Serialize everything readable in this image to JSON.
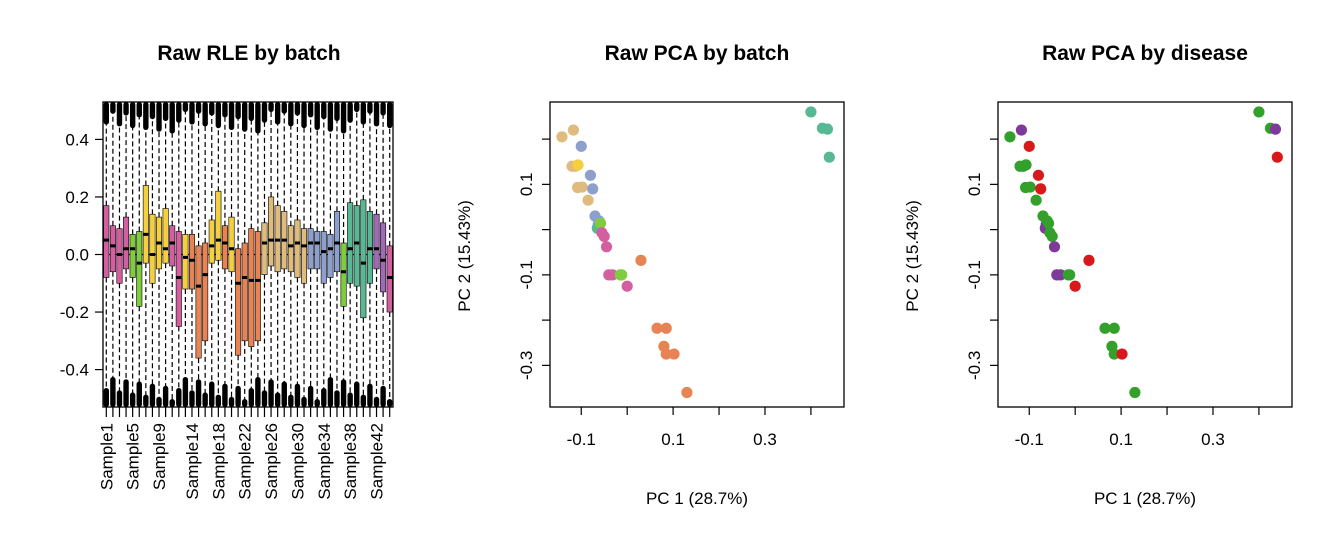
{
  "chart_data": [
    {
      "type": "box",
      "title": "Raw RLE by batch",
      "xlabel": "",
      "ylabel": "",
      "ylim": [
        -0.53,
        0.53
      ],
      "yticks": [
        -0.4,
        -0.2,
        0.0,
        0.2,
        0.4
      ],
      "ytick_labels": [
        "-0.4",
        "-0.2",
        "0.0",
        "0.2",
        "0.4"
      ],
      "reference_line": 0,
      "tick_labels": [
        "Sample1",
        "Sample5",
        "Sample9",
        "Sample14",
        "Sample18",
        "Sample22",
        "Sample26",
        "Sample30",
        "Sample34",
        "Sample38",
        "Sample42"
      ],
      "tick_label_positions": [
        1,
        5,
        9,
        14,
        18,
        22,
        26,
        30,
        34,
        38,
        42
      ],
      "samples": [
        {
          "n": 1,
          "q1": -0.08,
          "med": 0.05,
          "q3": 0.17,
          "color": "#d45fa0"
        },
        {
          "n": 2,
          "q1": -0.06,
          "med": 0.03,
          "q3": 0.1,
          "color": "#d45fa0"
        },
        {
          "n": 3,
          "q1": -0.1,
          "med": 0.0,
          "q3": 0.09,
          "color": "#d45fa0"
        },
        {
          "n": 4,
          "q1": -0.05,
          "med": 0.02,
          "q3": 0.13,
          "color": "#d45fa0"
        },
        {
          "n": 5,
          "q1": -0.08,
          "med": 0.02,
          "q3": 0.07,
          "color": "#7fcd3c"
        },
        {
          "n": 6,
          "q1": -0.18,
          "med": -0.03,
          "q3": 0.08,
          "color": "#7fcd3c"
        },
        {
          "n": 7,
          "q1": -0.03,
          "med": 0.07,
          "q3": 0.24,
          "color": "#f4cf3e"
        },
        {
          "n": 8,
          "q1": -0.1,
          "med": 0.0,
          "q3": 0.14,
          "color": "#f4cf3e"
        },
        {
          "n": 9,
          "q1": -0.05,
          "med": 0.04,
          "q3": 0.13,
          "color": "#f4cf3e"
        },
        {
          "n": 10,
          "q1": -0.03,
          "med": 0.02,
          "q3": 0.16,
          "color": "#f4cf3e"
        },
        {
          "n": 11,
          "q1": -0.04,
          "med": 0.04,
          "q3": 0.1,
          "color": "#d45fa0"
        },
        {
          "n": 12,
          "q1": -0.25,
          "med": -0.08,
          "q3": 0.08,
          "color": "#d45fa0"
        },
        {
          "n": 13,
          "q1": -0.12,
          "med": -0.01,
          "q3": 0.07,
          "color": "#f4cf3e"
        },
        {
          "n": 14,
          "q1": -0.12,
          "med": -0.02,
          "q3": 0.07,
          "color": "#e88454"
        },
        {
          "n": 15,
          "q1": -0.36,
          "med": -0.11,
          "q3": 0.03,
          "color": "#e88454"
        },
        {
          "n": 16,
          "q1": -0.3,
          "med": -0.07,
          "q3": 0.04,
          "color": "#e88454"
        },
        {
          "n": 17,
          "q1": -0.03,
          "med": 0.03,
          "q3": 0.12,
          "color": "#f4cf3e"
        },
        {
          "n": 18,
          "q1": -0.02,
          "med": 0.05,
          "q3": 0.22,
          "color": "#f4cf3e"
        },
        {
          "n": 19,
          "q1": -0.05,
          "med": 0.04,
          "q3": 0.1,
          "color": "#e88454"
        },
        {
          "n": 20,
          "q1": -0.06,
          "med": 0.02,
          "q3": 0.13,
          "color": "#f4cf3e"
        },
        {
          "n": 21,
          "q1": -0.35,
          "med": -0.1,
          "q3": 0.02,
          "color": "#e88454"
        },
        {
          "n": 22,
          "q1": -0.3,
          "med": -0.08,
          "q3": 0.04,
          "color": "#e88454"
        },
        {
          "n": 23,
          "q1": -0.32,
          "med": -0.09,
          "q3": 0.09,
          "color": "#e88454"
        },
        {
          "n": 24,
          "q1": -0.3,
          "med": -0.09,
          "q3": 0.08,
          "color": "#e88454"
        },
        {
          "n": 25,
          "q1": -0.07,
          "med": 0.04,
          "q3": 0.11,
          "color": "#dfbb7e"
        },
        {
          "n": 26,
          "q1": -0.04,
          "med": 0.05,
          "q3": 0.2,
          "color": "#dfbb7e"
        },
        {
          "n": 27,
          "q1": -0.06,
          "med": 0.05,
          "q3": 0.17,
          "color": "#dfbb7e"
        },
        {
          "n": 28,
          "q1": -0.05,
          "med": 0.05,
          "q3": 0.15,
          "color": "#dfbb7e"
        },
        {
          "n": 29,
          "q1": -0.06,
          "med": 0.03,
          "q3": 0.1,
          "color": "#dfbb7e"
        },
        {
          "n": 30,
          "q1": -0.08,
          "med": 0.04,
          "q3": 0.12,
          "color": "#dfbb7e"
        },
        {
          "n": 31,
          "q1": -0.1,
          "med": 0.03,
          "q3": 0.09,
          "color": "#dfbb7e"
        },
        {
          "n": 32,
          "q1": -0.05,
          "med": 0.04,
          "q3": 0.09,
          "color": "#8d9fcc"
        },
        {
          "n": 33,
          "q1": -0.05,
          "med": 0.04,
          "q3": 0.08,
          "color": "#8d9fcc"
        },
        {
          "n": 34,
          "q1": -0.1,
          "med": 0.01,
          "q3": 0.08,
          "color": "#8d9fcc"
        },
        {
          "n": 35,
          "q1": -0.08,
          "med": 0.02,
          "q3": 0.07,
          "color": "#8d9fcc"
        },
        {
          "n": 36,
          "q1": -0.06,
          "med": 0.04,
          "q3": 0.15,
          "color": "#8d9fcc"
        },
        {
          "n": 37,
          "q1": -0.18,
          "med": -0.06,
          "q3": 0.04,
          "color": "#7fcd3c"
        },
        {
          "n": 38,
          "q1": -0.1,
          "med": 0.02,
          "q3": 0.18,
          "color": "#59b894"
        },
        {
          "n": 39,
          "q1": -0.11,
          "med": 0.04,
          "q3": 0.17,
          "color": "#59b894"
        },
        {
          "n": 40,
          "q1": -0.22,
          "med": -0.03,
          "q3": 0.19,
          "color": "#59b894"
        },
        {
          "n": 41,
          "q1": -0.1,
          "med": 0.02,
          "q3": 0.15,
          "color": "#59b894"
        },
        {
          "n": 42,
          "q1": -0.05,
          "med": 0.02,
          "q3": 0.14,
          "color": "#a06ab4"
        },
        {
          "n": 43,
          "q1": -0.13,
          "med": -0.02,
          "q3": 0.11,
          "color": "#a06ab4"
        },
        {
          "n": 44,
          "q1": -0.2,
          "med": -0.08,
          "q3": 0.03,
          "color": "#d45fa0"
        }
      ]
    },
    {
      "type": "scatter",
      "title": "Raw PCA by batch",
      "xlabel": "PC 1 (28.7%)",
      "ylabel": "PC 2 (15.43%)",
      "xlim": [
        -0.168,
        0.472
      ],
      "ylim": [
        -0.392,
        0.282
      ],
      "xticks": [
        -0.1,
        0.0,
        0.1,
        0.2,
        0.3,
        0.4
      ],
      "xtick_labels": [
        "-0.1",
        "",
        "0.1",
        "",
        "0.3",
        ""
      ],
      "yticks": [
        -0.3,
        -0.2,
        -0.1,
        0.0,
        0.1,
        0.2
      ],
      "ytick_labels": [
        "-0.3",
        "",
        "-0.1",
        "",
        "0.1",
        ""
      ],
      "points": [
        {
          "x": 0.4,
          "y": 0.26,
          "c": "#59b894"
        },
        {
          "x": 0.425,
          "y": 0.224,
          "c": "#59b894"
        },
        {
          "x": 0.436,
          "y": 0.222,
          "c": "#59b894"
        },
        {
          "x": 0.44,
          "y": 0.16,
          "c": "#59b894"
        },
        {
          "x": -0.142,
          "y": 0.205,
          "c": "#dfbb7e"
        },
        {
          "x": -0.117,
          "y": 0.22,
          "c": "#dfbb7e"
        },
        {
          "x": -0.12,
          "y": 0.14,
          "c": "#dfbb7e"
        },
        {
          "x": -0.113,
          "y": 0.14,
          "c": "#dfbb7e"
        },
        {
          "x": -0.108,
          "y": 0.093,
          "c": "#dfbb7e"
        },
        {
          "x": -0.098,
          "y": 0.094,
          "c": "#dfbb7e"
        },
        {
          "x": -0.085,
          "y": 0.065,
          "c": "#dfbb7e"
        },
        {
          "x": -0.107,
          "y": 0.143,
          "c": "#f4cf3e"
        },
        {
          "x": -0.1,
          "y": 0.184,
          "c": "#8d9fcc"
        },
        {
          "x": -0.08,
          "y": 0.12,
          "c": "#8d9fcc"
        },
        {
          "x": -0.075,
          "y": 0.09,
          "c": "#8d9fcc"
        },
        {
          "x": -0.07,
          "y": 0.03,
          "c": "#8d9fcc"
        },
        {
          "x": -0.063,
          "y": 0.012,
          "c": "#8d9fcc"
        },
        {
          "x": -0.061,
          "y": 0.019,
          "c": "#8d9fcc"
        },
        {
          "x": -0.065,
          "y": 0.003,
          "c": "#59b894"
        },
        {
          "x": -0.058,
          "y": 0.014,
          "c": "#7fcd3c"
        },
        {
          "x": -0.055,
          "y": -0.007,
          "c": "#d45fa0"
        },
        {
          "x": -0.05,
          "y": -0.015,
          "c": "#d45fa0"
        },
        {
          "x": -0.045,
          "y": -0.038,
          "c": "#d45fa0"
        },
        {
          "x": -0.04,
          "y": -0.1,
          "c": "#d45fa0"
        },
        {
          "x": -0.032,
          "y": -0.1,
          "c": "#d45fa0"
        },
        {
          "x": 0.0,
          "y": -0.125,
          "c": "#d45fa0"
        },
        {
          "x": -0.015,
          "y": -0.1,
          "c": "#7fcd3c"
        },
        {
          "x": -0.012,
          "y": -0.1,
          "c": "#7fcd3c"
        },
        {
          "x": 0.03,
          "y": -0.068,
          "c": "#e88454"
        },
        {
          "x": 0.065,
          "y": -0.218,
          "c": "#e88454"
        },
        {
          "x": 0.085,
          "y": -0.218,
          "c": "#e88454"
        },
        {
          "x": 0.08,
          "y": -0.258,
          "c": "#e88454"
        },
        {
          "x": 0.085,
          "y": -0.275,
          "c": "#e88454"
        },
        {
          "x": 0.102,
          "y": -0.275,
          "c": "#e88454"
        },
        {
          "x": 0.13,
          "y": -0.36,
          "c": "#e88454"
        }
      ]
    },
    {
      "type": "scatter",
      "title": "Raw PCA by disease",
      "xlabel": "PC 1 (28.7%)",
      "ylabel": "PC 2 (15.43%)",
      "xlim": [
        -0.168,
        0.472
      ],
      "ylim": [
        -0.392,
        0.282
      ],
      "xticks": [
        -0.1,
        0.0,
        0.1,
        0.2,
        0.3,
        0.4
      ],
      "xtick_labels": [
        "-0.1",
        "",
        "0.1",
        "",
        "0.3",
        ""
      ],
      "yticks": [
        -0.3,
        -0.2,
        -0.1,
        0.0,
        0.1,
        0.2
      ],
      "ytick_labels": [
        "-0.3",
        "",
        "-0.1",
        "",
        "0.1",
        ""
      ],
      "points": [
        {
          "x": 0.4,
          "y": 0.26,
          "c": "#33a02c"
        },
        {
          "x": 0.425,
          "y": 0.224,
          "c": "#33a02c"
        },
        {
          "x": 0.436,
          "y": 0.222,
          "c": "#7d3a9a"
        },
        {
          "x": 0.44,
          "y": 0.16,
          "c": "#d7191c"
        },
        {
          "x": -0.142,
          "y": 0.205,
          "c": "#33a02c"
        },
        {
          "x": -0.117,
          "y": 0.22,
          "c": "#7d3a9a"
        },
        {
          "x": -0.12,
          "y": 0.14,
          "c": "#33a02c"
        },
        {
          "x": -0.113,
          "y": 0.14,
          "c": "#33a02c"
        },
        {
          "x": -0.108,
          "y": 0.093,
          "c": "#33a02c"
        },
        {
          "x": -0.098,
          "y": 0.094,
          "c": "#33a02c"
        },
        {
          "x": -0.085,
          "y": 0.065,
          "c": "#33a02c"
        },
        {
          "x": -0.107,
          "y": 0.143,
          "c": "#33a02c"
        },
        {
          "x": -0.1,
          "y": 0.184,
          "c": "#d7191c"
        },
        {
          "x": -0.08,
          "y": 0.12,
          "c": "#d7191c"
        },
        {
          "x": -0.075,
          "y": 0.09,
          "c": "#d7191c"
        },
        {
          "x": -0.07,
          "y": 0.03,
          "c": "#33a02c"
        },
        {
          "x": -0.063,
          "y": 0.012,
          "c": "#3b64b5"
        },
        {
          "x": -0.061,
          "y": 0.019,
          "c": "#33a02c"
        },
        {
          "x": -0.065,
          "y": 0.003,
          "c": "#7d3a9a"
        },
        {
          "x": -0.058,
          "y": 0.014,
          "c": "#33a02c"
        },
        {
          "x": -0.055,
          "y": -0.007,
          "c": "#33a02c"
        },
        {
          "x": -0.05,
          "y": -0.015,
          "c": "#33a02c"
        },
        {
          "x": -0.045,
          "y": -0.038,
          "c": "#7d3a9a"
        },
        {
          "x": -0.04,
          "y": -0.1,
          "c": "#7d3a9a"
        },
        {
          "x": -0.032,
          "y": -0.1,
          "c": "#7d3a9a"
        },
        {
          "x": 0.0,
          "y": -0.125,
          "c": "#d7191c"
        },
        {
          "x": -0.015,
          "y": -0.1,
          "c": "#33a02c"
        },
        {
          "x": -0.012,
          "y": -0.1,
          "c": "#33a02c"
        },
        {
          "x": 0.03,
          "y": -0.068,
          "c": "#d7191c"
        },
        {
          "x": 0.065,
          "y": -0.218,
          "c": "#33a02c"
        },
        {
          "x": 0.085,
          "y": -0.218,
          "c": "#33a02c"
        },
        {
          "x": 0.08,
          "y": -0.258,
          "c": "#33a02c"
        },
        {
          "x": 0.085,
          "y": -0.275,
          "c": "#33a02c"
        },
        {
          "x": 0.102,
          "y": -0.275,
          "c": "#d7191c"
        },
        {
          "x": 0.13,
          "y": -0.36,
          "c": "#33a02c"
        }
      ]
    }
  ]
}
